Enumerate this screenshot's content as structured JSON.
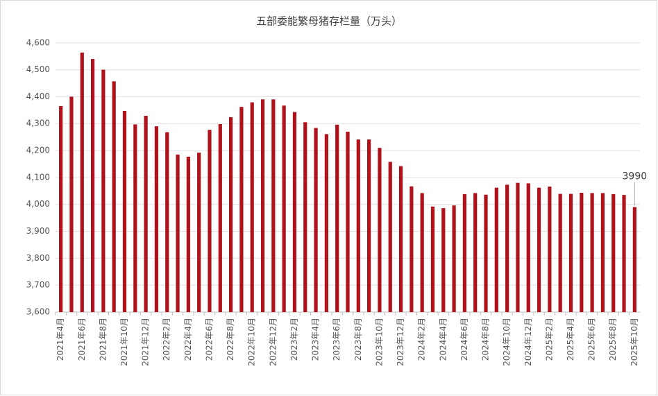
{
  "chart_data": {
    "type": "bar",
    "title": "五部委能繁母猪存栏量（万头）",
    "categories": [
      "2021年4月",
      null,
      "2021年6月",
      null,
      "2021年8月",
      null,
      "2021年10月",
      null,
      "2021年12月",
      null,
      "2022年2月",
      null,
      "2022年4月",
      null,
      "2022年6月",
      null,
      "2022年8月",
      null,
      "2022年10月",
      null,
      "2022年12月",
      null,
      "2023年2月",
      null,
      "2023年4月",
      null,
      "2023年6月",
      null,
      "2023年8月",
      null,
      "2023年10月",
      null,
      "2023年12月",
      null,
      "2024年2月",
      null,
      "2024年4月",
      null,
      "2024年6月",
      null,
      "2024年8月",
      null,
      "2024年10月",
      null,
      "2024年12月",
      null,
      "2025年2月",
      null,
      "2025年4月",
      null,
      "2025年6月",
      null,
      "2025年8月",
      null,
      "2025年10月"
    ],
    "values": [
      4365,
      4400,
      4564,
      4540,
      4500,
      4457,
      4347,
      4297,
      4329,
      4290,
      4268,
      4185,
      4177,
      4192,
      4277,
      4298,
      4324,
      4362,
      4379,
      4390,
      4390,
      4367,
      4343,
      4305,
      4284,
      4261,
      4296,
      4270,
      4241,
      4241,
      4210,
      4158,
      4142,
      4067,
      4042,
      3992,
      3986,
      3996,
      4038,
      4042,
      4036,
      4062,
      4073,
      4080,
      4078,
      4062,
      4066,
      4039,
      4039,
      4043,
      4042,
      4042,
      4038,
      4035,
      3990
    ],
    "value_labels": [
      null,
      null,
      null,
      null,
      null,
      null,
      null,
      null,
      null,
      null,
      null,
      null,
      null,
      null,
      null,
      null,
      null,
      null,
      null,
      null,
      null,
      null,
      null,
      null,
      null,
      null,
      null,
      null,
      null,
      null,
      null,
      null,
      null,
      null,
      null,
      null,
      null,
      null,
      null,
      null,
      null,
      null,
      null,
      null,
      null,
      null,
      null,
      null,
      null,
      null,
      null,
      null,
      null,
      null,
      "3990"
    ],
    "color": "#b0121b",
    "ylim": [
      3600,
      4620
    ],
    "yticks": [
      {
        "value": 3600,
        "label": "3,600"
      },
      {
        "value": 3700,
        "label": "3,700"
      },
      {
        "value": 3800,
        "label": "3,800"
      },
      {
        "value": 3900,
        "label": "3,900"
      },
      {
        "value": 4000,
        "label": "4,000"
      },
      {
        "value": 4100,
        "label": "4,100"
      },
      {
        "value": 4200,
        "label": "4,200"
      },
      {
        "value": 4300,
        "label": "4,300"
      },
      {
        "value": 4400,
        "label": "4,400"
      },
      {
        "value": 4500,
        "label": "4,500"
      },
      {
        "value": 4600,
        "label": "4,600"
      }
    ],
    "grid": true
  }
}
